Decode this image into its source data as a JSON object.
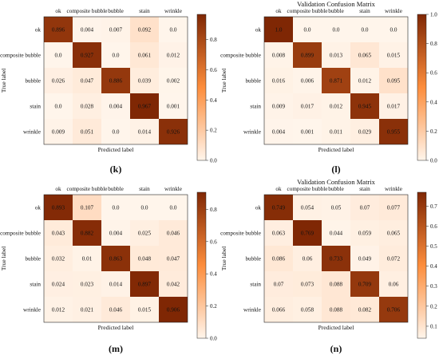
{
  "colors": {
    "low": "#fff5eb",
    "mid": "#fd8d3c",
    "high": "#7f2704",
    "text_dark": "#111111",
    "text_light": "#ffffff"
  },
  "chart_data": [
    {
      "type": "heatmap",
      "title": "",
      "panel_label": "(k)",
      "xlabel": "Predicted label",
      "ylabel": "True label",
      "x_categories": [
        "ok",
        "composite bubble",
        "bubble",
        "stain",
        "wrinkle"
      ],
      "y_categories": [
        "ok",
        "composite bubble",
        "bubble",
        "stain",
        "wrinkle"
      ],
      "matrix": [
        [
          "0.896",
          "0.004",
          "0.007",
          "0.092",
          "0.0"
        ],
        [
          "0.0",
          "0.927",
          "0.0",
          "0.061",
          "0.012"
        ],
        [
          "0.026",
          "0.047",
          "0.886",
          "0.039",
          "0.002"
        ],
        [
          "0.0",
          "0.028",
          "0.004",
          "0.967",
          "0.001"
        ],
        [
          "0.009",
          "0.051",
          "0.0",
          "0.014",
          "0.926"
        ]
      ],
      "colorbar": {
        "range": [
          0,
          0.967
        ],
        "ticks": [
          "0.0",
          "0.2",
          "0.4",
          "0.6",
          "0.8"
        ]
      }
    },
    {
      "type": "heatmap",
      "title": "Validation Confusion Matrix",
      "panel_label": "(l)",
      "xlabel": "Predicted label",
      "ylabel": "True label",
      "x_categories": [
        "ok",
        "composite bubble",
        "bubble",
        "stain",
        "wrinkle"
      ],
      "y_categories": [
        "ok",
        "composite bubble",
        "bubble",
        "stain",
        "wrinkle"
      ],
      "matrix": [
        [
          "1.0",
          "0.0",
          "0.0",
          "0.0",
          "0.0"
        ],
        [
          "0.008",
          "0.899",
          "0.013",
          "0.065",
          "0.015"
        ],
        [
          "0.016",
          "0.006",
          "0.871",
          "0.012",
          "0.095"
        ],
        [
          "0.009",
          "0.017",
          "0.012",
          "0.945",
          "0.017"
        ],
        [
          "0.004",
          "0.001",
          "0.011",
          "0.029",
          "0.955"
        ]
      ],
      "colorbar": {
        "range": [
          0,
          1.0
        ],
        "ticks": [
          "0.0",
          "0.2",
          "0.4",
          "0.6",
          "0.8",
          "1.0"
        ]
      }
    },
    {
      "type": "heatmap",
      "title": "",
      "panel_label": "(m)",
      "xlabel": "Predicted label",
      "ylabel": "True label",
      "x_categories": [
        "ok",
        "composite bubble",
        "bubble",
        "stain",
        "wrinkle"
      ],
      "y_categories": [
        "ok",
        "composite bubble",
        "bubble",
        "stain",
        "wrinkle"
      ],
      "matrix": [
        [
          "0.893",
          "0.107",
          "0.0",
          "0.0",
          "0.0"
        ],
        [
          "0.043",
          "0.882",
          "0.004",
          "0.025",
          "0.046"
        ],
        [
          "0.032",
          "0.01",
          "0.863",
          "0.048",
          "0.047"
        ],
        [
          "0.024",
          "0.023",
          "0.014",
          "0.897",
          "0.042"
        ],
        [
          "0.012",
          "0.021",
          "0.046",
          "0.015",
          "0.906"
        ]
      ],
      "colorbar": {
        "range": [
          0,
          0.906
        ],
        "ticks": [
          "0.0",
          "0.2",
          "0.4",
          "0.6",
          "0.8"
        ]
      }
    },
    {
      "type": "heatmap",
      "title": "Validation Confusion Matrix",
      "panel_label": "(n)",
      "xlabel": "Predicted label",
      "ylabel": "True label",
      "x_categories": [
        "ok",
        "composite bubble",
        "bubble",
        "stain",
        "wrinkle"
      ],
      "y_categories": [
        "ok",
        "composite bubble",
        "bubble",
        "stain",
        "wrinkle"
      ],
      "matrix": [
        [
          "0.749",
          "0.054",
          "0.05",
          "0.07",
          "0.077"
        ],
        [
          "0.063",
          "0.769",
          "0.044",
          "0.059",
          "0.065"
        ],
        [
          "0.086",
          "0.06",
          "0.733",
          "0.049",
          "0.072"
        ],
        [
          "0.07",
          "0.073",
          "0.088",
          "0.709",
          "0.06"
        ],
        [
          "0.066",
          "0.058",
          "0.088",
          "0.082",
          "0.706"
        ]
      ],
      "colorbar": {
        "range": [
          0.04,
          0.769
        ],
        "ticks": [
          "0.1",
          "0.2",
          "0.3",
          "0.4",
          "0.5",
          "0.6",
          "0.7"
        ]
      }
    }
  ]
}
